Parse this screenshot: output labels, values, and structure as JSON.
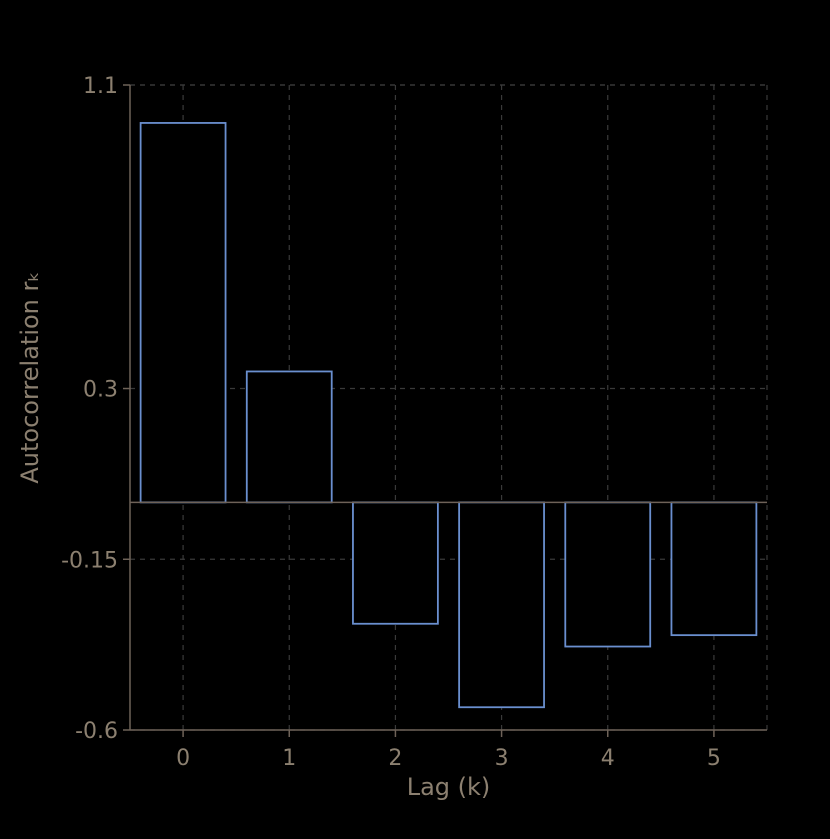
{
  "chart_data": {
    "type": "bar",
    "title": "",
    "xlabel": "Lag (k)",
    "ylabel": "Autocorrelation rₖ",
    "categories": [
      "0",
      "1",
      "2",
      "3",
      "4",
      "5"
    ],
    "values": [
      1.0,
      0.345,
      -0.32,
      -0.54,
      -0.38,
      -0.35
    ],
    "yticks": [
      "1.1",
      "0.3",
      "-0.15",
      "-0.6"
    ],
    "ytick_values": [
      1.1,
      0.3,
      -0.15,
      -0.6
    ],
    "ylim": [
      -0.6,
      1.1
    ],
    "grid": true,
    "colors": {
      "bar_edge": "#6a8fcf",
      "bar_fill": "#000000",
      "background": "#000000",
      "text": "#8c8070"
    }
  }
}
